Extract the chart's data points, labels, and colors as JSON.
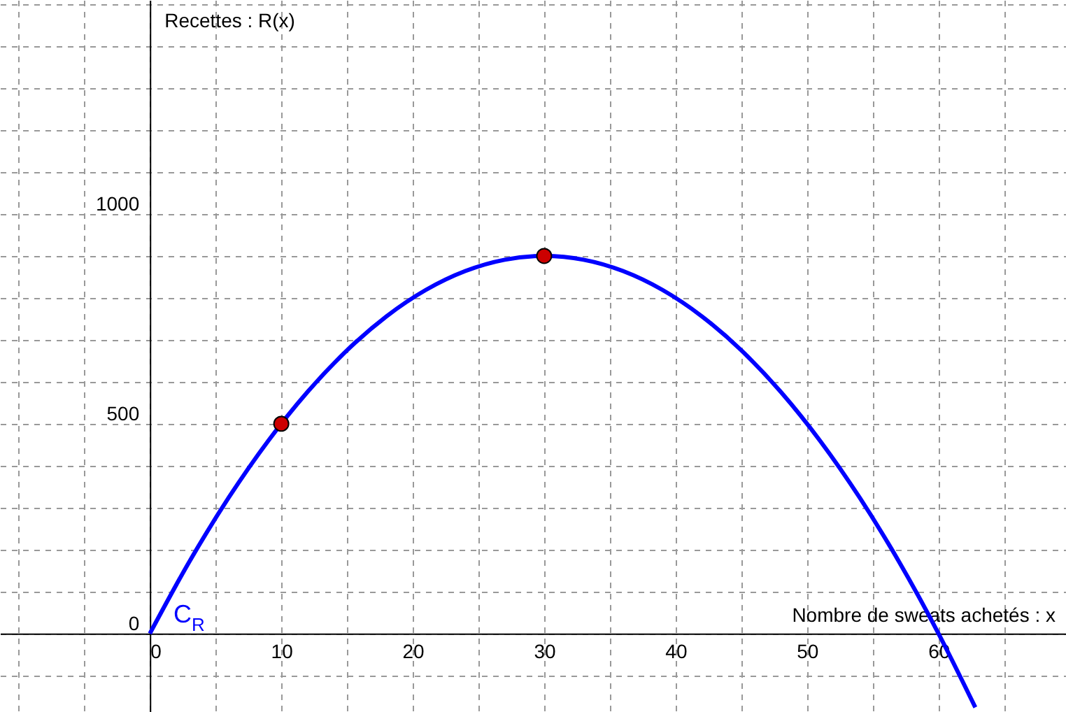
{
  "chart_data": {
    "type": "line",
    "xlabel": "Nombre de sweats achetés : x",
    "ylabel": "Recettes : R(x)",
    "xlim": [
      -11.4,
      69.7
    ],
    "ylim": [
      -187,
      1510
    ],
    "xticks": [
      {
        "value": -10,
        "label": null
      },
      {
        "value": -5,
        "label": null
      },
      0,
      {
        "value": 5,
        "label": null
      },
      10,
      {
        "value": 15,
        "label": null
      },
      20,
      {
        "value": 25,
        "label": null
      },
      30,
      {
        "value": 35,
        "label": null
      },
      40,
      {
        "value": 45,
        "label": null
      },
      50,
      {
        "value": 55,
        "label": null
      },
      60,
      {
        "value": 65,
        "label": null
      }
    ],
    "yticks": [
      {
        "value": -100,
        "label": null
      },
      0,
      {
        "value": 100,
        "label": null
      },
      {
        "value": 200,
        "label": null
      },
      {
        "value": 300,
        "label": null
      },
      {
        "value": 400,
        "label": null
      },
      500,
      {
        "value": 600,
        "label": null
      },
      {
        "value": 700,
        "label": null
      },
      {
        "value": 800,
        "label": null
      },
      {
        "value": 900,
        "label": null
      },
      1000,
      {
        "value": 1100,
        "label": null
      },
      {
        "value": 1200,
        "label": null
      },
      {
        "value": 1300,
        "label": null
      },
      {
        "value": 1400,
        "label": null
      },
      {
        "value": 1500,
        "label": null
      }
    ],
    "grid": true,
    "line_style": "solid",
    "marker": "none",
    "series": [
      {
        "color": "#0000ff",
        "x": [
          0,
          3,
          6,
          9,
          12,
          15,
          18,
          21,
          24,
          27,
          30,
          33,
          36,
          39,
          42,
          45,
          48,
          51,
          54,
          57,
          60,
          62.8
        ],
        "values": [
          0,
          171,
          324,
          459,
          576,
          675,
          756,
          819,
          864,
          891,
          900,
          891,
          864,
          819,
          756,
          675,
          576,
          459,
          324,
          171,
          0,
          -176
        ]
      },
      {
        "type": "scatter",
        "color": "#cc0000",
        "marker": "circle",
        "x": [
          10,
          30
        ],
        "values": [
          500,
          900
        ]
      }
    ],
    "annotations": [
      "C$_{R}$"
    ]
  }
}
